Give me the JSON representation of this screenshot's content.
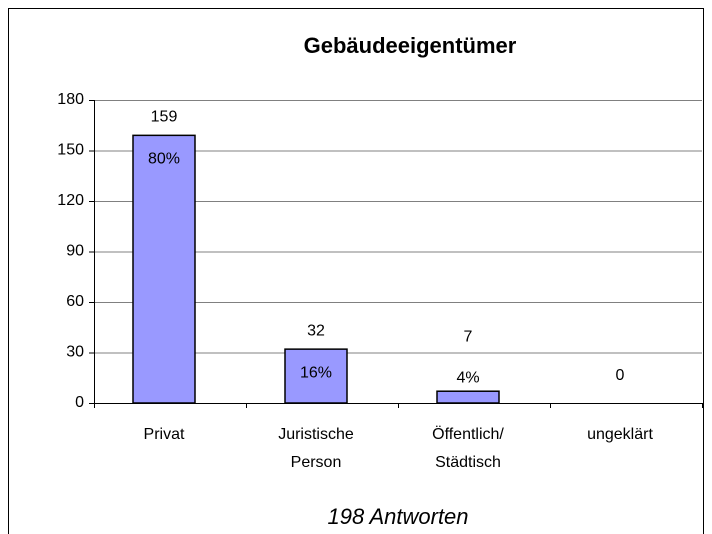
{
  "chart_data": {
    "type": "bar",
    "title": "Gebäudeeigentümer",
    "footnote": "198 Antworten",
    "categories": [
      "Privat",
      "Juristische Person",
      "Öffentlich/ Städtisch",
      "ungeklärt"
    ],
    "values": [
      159,
      32,
      7,
      0
    ],
    "shares": [
      80,
      16,
      4,
      null
    ],
    "share_labels": [
      "80%",
      "16%",
      "4%",
      null
    ],
    "color": "#9999ff",
    "ylim": [
      0,
      180
    ],
    "yticks": [
      0,
      30,
      60,
      90,
      120,
      150,
      180
    ],
    "grid": true
  }
}
